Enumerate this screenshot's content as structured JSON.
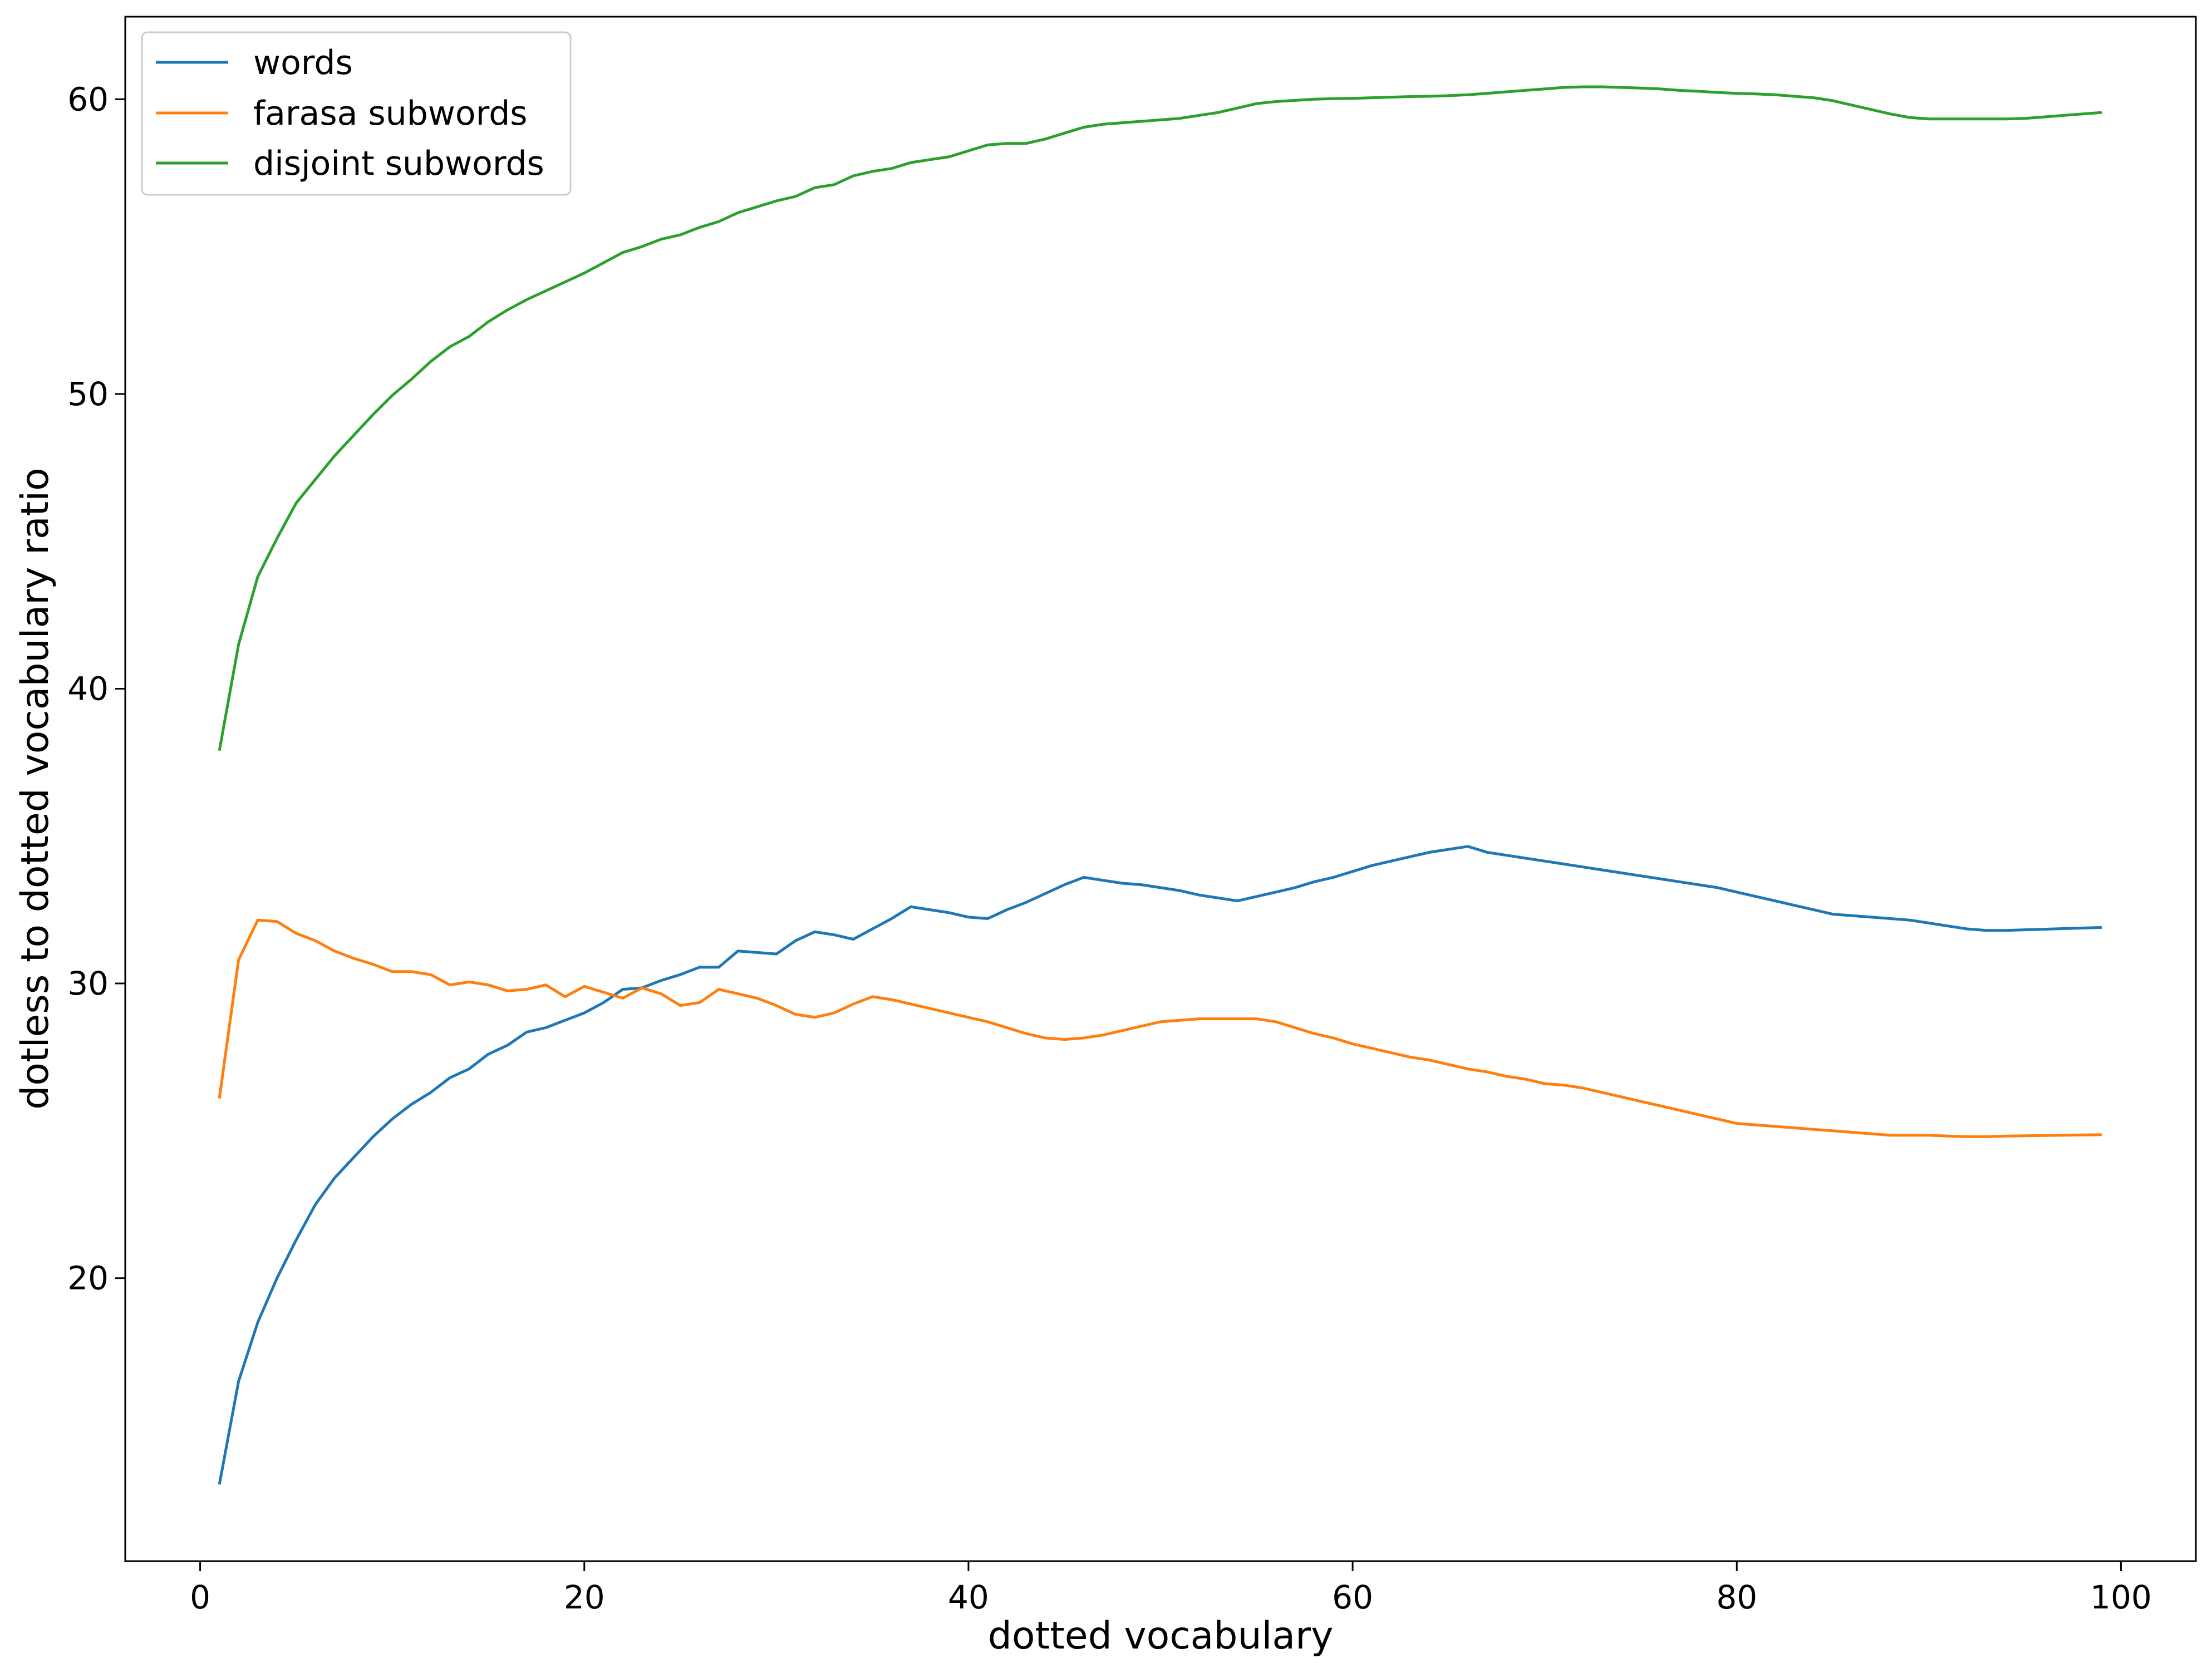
{
  "chart_data": {
    "type": "line",
    "title": "",
    "xlabel": "dotted vocabulary",
    "ylabel": "dotless to dotted vocabulary ratio",
    "xlim": [
      -3.9,
      103.9
    ],
    "ylim": [
      10.4,
      62.8
    ],
    "xticks": [
      0,
      20,
      40,
      60,
      80,
      100
    ],
    "yticks": [
      20,
      30,
      40,
      50,
      60
    ],
    "grid": false,
    "legend": "top-left",
    "x": [
      1,
      2,
      3,
      4,
      5,
      6,
      7,
      8,
      9,
      10,
      11,
      12,
      13,
      14,
      15,
      16,
      17,
      18,
      19,
      20,
      21,
      22,
      23,
      24,
      25,
      26,
      27,
      28,
      29,
      30,
      31,
      32,
      33,
      34,
      35,
      36,
      37,
      38,
      39,
      40,
      41,
      42,
      43,
      44,
      45,
      46,
      47,
      48,
      49,
      50,
      51,
      52,
      53,
      54,
      55,
      56,
      57,
      58,
      59,
      60,
      61,
      62,
      63,
      64,
      65,
      66,
      67,
      68,
      69,
      70,
      71,
      72,
      73,
      74,
      75,
      76,
      77,
      78,
      79,
      80,
      81,
      82,
      83,
      84,
      85,
      86,
      87,
      88,
      89,
      90,
      91,
      92,
      93,
      94,
      95,
      96,
      97,
      98,
      99
    ],
    "series": [
      {
        "name": "words",
        "color": "#1f77b4",
        "values": [
          13.0,
          16.5,
          18.5,
          20.0,
          21.3,
          22.5,
          23.4,
          24.1,
          24.8,
          25.4,
          25.9,
          26.3,
          26.8,
          27.1,
          27.6,
          27.9,
          28.35,
          28.5,
          28.75,
          29.0,
          29.35,
          29.8,
          29.85,
          30.1,
          30.3,
          30.55,
          30.55,
          31.1,
          31.05,
          31.0,
          31.45,
          31.75,
          31.65,
          31.5,
          31.85,
          32.2,
          32.6,
          32.5,
          32.4,
          32.25,
          32.2,
          32.5,
          32.75,
          33.05,
          33.35,
          33.6,
          33.5,
          33.4,
          33.35,
          33.25,
          33.15,
          33.0,
          32.9,
          32.8,
          32.95,
          33.1,
          33.25,
          33.45,
          33.6,
          33.8,
          34.0,
          34.15,
          34.3,
          34.45,
          34.55,
          34.65,
          34.45,
          34.35,
          34.25,
          34.15,
          34.05,
          33.95,
          33.85,
          33.75,
          33.65,
          33.55,
          33.45,
          33.35,
          33.25,
          33.1,
          32.95,
          32.8,
          32.65,
          32.5,
          32.35,
          32.3,
          32.25,
          32.2,
          32.15,
          32.05,
          31.95,
          31.85,
          31.8,
          31.8,
          31.82,
          31.84,
          31.86,
          31.88,
          31.9
        ]
      },
      {
        "name": "farasa subwords",
        "color": "#ff7f0e",
        "values": [
          26.1,
          30.8,
          32.15,
          32.1,
          31.7,
          31.45,
          31.1,
          30.85,
          30.65,
          30.4,
          30.4,
          30.3,
          29.95,
          30.05,
          29.95,
          29.75,
          29.8,
          29.95,
          29.55,
          29.9,
          29.7,
          29.5,
          29.85,
          29.65,
          29.25,
          29.35,
          29.8,
          29.65,
          29.5,
          29.25,
          28.95,
          28.85,
          29.0,
          29.3,
          29.55,
          29.45,
          29.3,
          29.15,
          29.0,
          28.85,
          28.7,
          28.5,
          28.3,
          28.15,
          28.1,
          28.15,
          28.25,
          28.4,
          28.55,
          28.7,
          28.75,
          28.8,
          28.8,
          28.8,
          28.8,
          28.7,
          28.5,
          28.3,
          28.15,
          27.95,
          27.8,
          27.65,
          27.5,
          27.4,
          27.25,
          27.1,
          27.0,
          26.85,
          26.75,
          26.6,
          26.55,
          26.45,
          26.3,
          26.15,
          26.0,
          25.85,
          25.7,
          25.55,
          25.4,
          25.25,
          25.2,
          25.15,
          25.1,
          25.05,
          25.0,
          24.95,
          24.9,
          24.85,
          24.85,
          24.85,
          24.82,
          24.8,
          24.8,
          24.82,
          24.83,
          24.84,
          24.85,
          24.86,
          24.87
        ]
      },
      {
        "name": "disjoint subwords",
        "color": "#2ca02c",
        "values": [
          37.9,
          41.5,
          43.8,
          45.1,
          46.3,
          47.1,
          47.9,
          48.6,
          49.3,
          49.95,
          50.5,
          51.1,
          51.6,
          51.95,
          52.45,
          52.85,
          53.2,
          53.5,
          53.8,
          54.1,
          54.45,
          54.8,
          55.0,
          55.25,
          55.4,
          55.65,
          55.85,
          56.15,
          56.35,
          56.55,
          56.7,
          57.0,
          57.1,
          57.4,
          57.55,
          57.65,
          57.85,
          57.95,
          58.05,
          58.25,
          58.45,
          58.5,
          58.5,
          58.65,
          58.85,
          59.05,
          59.15,
          59.2,
          59.25,
          59.3,
          59.35,
          59.45,
          59.55,
          59.7,
          59.85,
          59.92,
          59.96,
          60.0,
          60.02,
          60.03,
          60.05,
          60.07,
          60.09,
          60.1,
          60.12,
          60.15,
          60.2,
          60.25,
          60.3,
          60.35,
          60.4,
          60.42,
          60.42,
          60.4,
          60.38,
          60.35,
          60.3,
          60.27,
          60.23,
          60.2,
          60.18,
          60.15,
          60.1,
          60.05,
          59.95,
          59.8,
          59.65,
          59.5,
          59.38,
          59.33,
          59.33,
          59.33,
          59.33,
          59.33,
          59.35,
          59.4,
          59.45,
          59.5,
          59.55
        ]
      }
    ]
  }
}
